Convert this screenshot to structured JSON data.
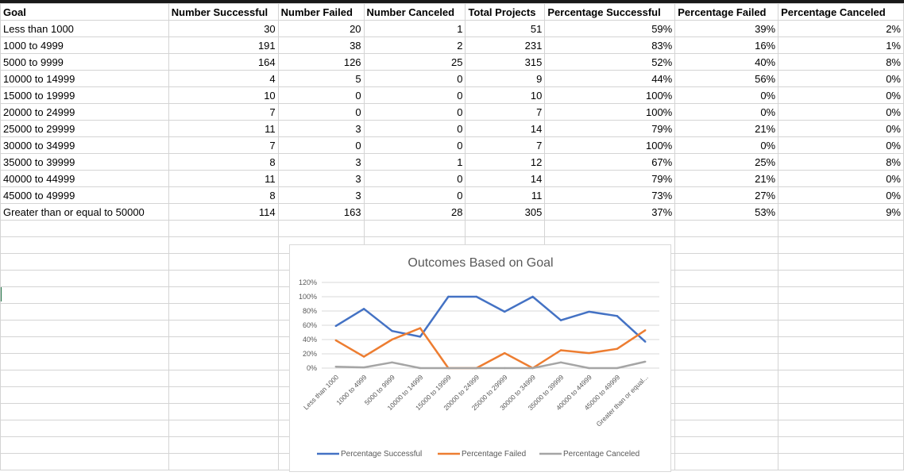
{
  "table": {
    "headers": [
      "Goal",
      "Number Successful",
      "Number Failed",
      "Number Canceled",
      "Total Projects",
      "Percentage Successful",
      "Percentage Failed",
      "Percentage Canceled"
    ],
    "rows": [
      [
        "Less than 1000",
        "30",
        "20",
        "1",
        "51",
        "59%",
        "39%",
        "2%"
      ],
      [
        "1000 to 4999",
        "191",
        "38",
        "2",
        "231",
        "83%",
        "16%",
        "1%"
      ],
      [
        "5000 to 9999",
        "164",
        "126",
        "25",
        "315",
        "52%",
        "40%",
        "8%"
      ],
      [
        "10000 to 14999",
        "4",
        "5",
        "0",
        "9",
        "44%",
        "56%",
        "0%"
      ],
      [
        "15000 to 19999",
        "10",
        "0",
        "0",
        "10",
        "100%",
        "0%",
        "0%"
      ],
      [
        "20000 to 24999",
        "7",
        "0",
        "0",
        "7",
        "100%",
        "0%",
        "0%"
      ],
      [
        "25000 to 29999",
        "11",
        "3",
        "0",
        "14",
        "79%",
        "21%",
        "0%"
      ],
      [
        "30000 to 34999",
        "7",
        "0",
        "0",
        "7",
        "100%",
        "0%",
        "0%"
      ],
      [
        "35000 to 39999",
        "8",
        "3",
        "1",
        "12",
        "67%",
        "25%",
        "8%"
      ],
      [
        "40000 to 44999",
        "11",
        "3",
        "0",
        "14",
        "79%",
        "21%",
        "0%"
      ],
      [
        "45000 to 49999",
        "8",
        "3",
        "0",
        "11",
        "73%",
        "27%",
        "0%"
      ],
      [
        "Greater than or equal to 50000",
        "114",
        "163",
        "28",
        "305",
        "37%",
        "53%",
        "9%"
      ]
    ]
  },
  "chart_data": {
    "type": "line",
    "title": "Outcomes Based on Goal",
    "xlabel": "",
    "ylabel": "",
    "categories": [
      "Less than 1000",
      "1000 to 4999",
      "5000 to 9999",
      "10000 to 14999",
      "15000 to 19999",
      "20000 to 24999",
      "25000 to 29999",
      "30000 to 34999",
      "35000 to 39999",
      "40000 to 44999",
      "45000 to 49999",
      "Greater than or equal..."
    ],
    "ylim": [
      0,
      120
    ],
    "yticks": [
      "0%",
      "20%",
      "40%",
      "60%",
      "80%",
      "100%",
      "120%"
    ],
    "grid": true,
    "legend_position": "bottom",
    "series": [
      {
        "name": "Percentage Successful",
        "color": "#4472C4",
        "values": [
          59,
          83,
          52,
          44,
          100,
          100,
          79,
          100,
          67,
          79,
          73,
          37
        ]
      },
      {
        "name": "Percentage Failed",
        "color": "#ED7D31",
        "values": [
          39,
          16,
          40,
          56,
          0,
          0,
          21,
          0,
          25,
          21,
          27,
          53
        ]
      },
      {
        "name": "Percentage Canceled",
        "color": "#A5A5A5",
        "values": [
          2,
          1,
          8,
          0,
          0,
          0,
          0,
          0,
          8,
          0,
          0,
          9
        ]
      }
    ]
  }
}
